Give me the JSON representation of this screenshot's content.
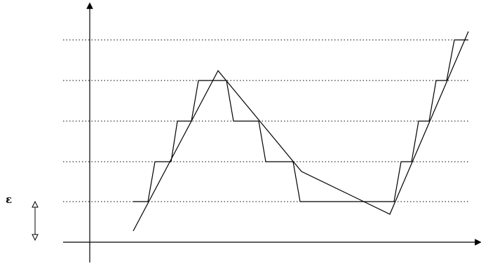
{
  "epsilon_label": "ε",
  "colors": {
    "line": "#000000",
    "grid": "#000000",
    "background": "#ffffff"
  },
  "diagram": {
    "grid_levels": 5,
    "grid_style": "dotted"
  }
}
